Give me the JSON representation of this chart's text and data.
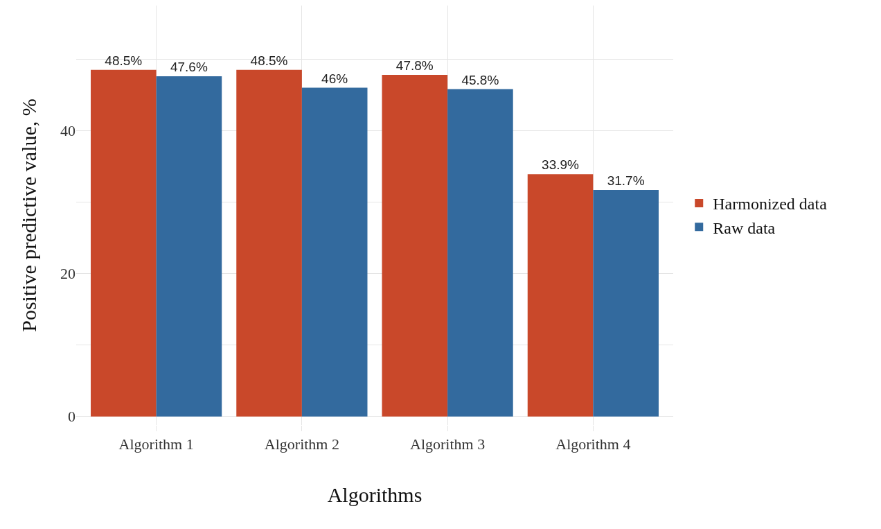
{
  "chart_data": {
    "type": "bar",
    "xlabel": "Algorithms",
    "ylabel": "Positive predictive value, %",
    "categories": [
      "Algorithm 1",
      "Algorithm 2",
      "Algorithm 3",
      "Algorithm 4"
    ],
    "series": [
      {
        "name": "Harmonized data",
        "color": "#c9482a",
        "values": [
          48.5,
          48.5,
          47.8,
          33.9
        ],
        "value_labels": [
          "48.5%",
          "48.5%",
          "47.8%",
          "33.9%"
        ]
      },
      {
        "name": "Raw data",
        "color": "#336a9e",
        "values": [
          47.6,
          46,
          45.8,
          31.7
        ],
        "value_labels": [
          "47.6%",
          "46%",
          "45.8%",
          "31.7%"
        ]
      }
    ],
    "ylim": [
      -1.2,
      57.5
    ],
    "yticks": [
      0,
      {
        "value": 10,
        "label": null
      },
      20,
      {
        "value": 30,
        "label": null
      },
      40,
      {
        "value": 50,
        "label": null
      }
    ],
    "grid": true,
    "legend": "right"
  }
}
